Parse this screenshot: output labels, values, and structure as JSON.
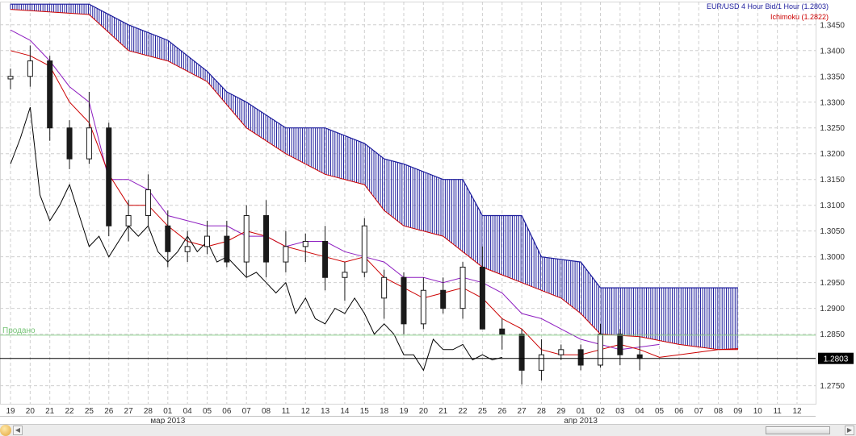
{
  "legend": {
    "main": "EUR/USD 4 Hour Bid/1 Hour (1.2803)",
    "indicator": "Ichimoku (1.2822)"
  },
  "colors": {
    "cloud": "#1c1c9c",
    "tenkan": "#cc0000",
    "kijun": "#8e1ec0",
    "chikou": "#000000",
    "candle_body": "#1a1a1a",
    "sold_line": "#8fd08f",
    "price_line": "#000000",
    "grid": "#cfcfcf"
  },
  "chart_data": {
    "type": "candlestick",
    "instrument": "EUR/USD",
    "timeframe": "4 Hour",
    "y_range": [
      1.2715,
      1.3495
    ],
    "y_ticks": [
      "1.3450",
      "1.3400",
      "1.3350",
      "1.3300",
      "1.3250",
      "1.3200",
      "1.3150",
      "1.3100",
      "1.3050",
      "1.3000",
      "1.2950",
      "1.2900",
      "1.2850",
      "1.2750"
    ],
    "y_tick_values": [
      1.345,
      1.34,
      1.335,
      1.33,
      1.325,
      1.32,
      1.315,
      1.31,
      1.305,
      1.3,
      1.295,
      1.29,
      1.285,
      1.275
    ],
    "x_labels": [
      "19",
      "20",
      "21",
      "22",
      "25",
      "26",
      "27",
      "28",
      "01",
      "04",
      "05",
      "06",
      "07",
      "08",
      "11",
      "12",
      "13",
      "14",
      "15",
      "18",
      "19",
      "20",
      "21",
      "22",
      "25",
      "26",
      "27",
      "28",
      "29",
      "01",
      "02",
      "03",
      "04",
      "05",
      "06",
      "07",
      "08",
      "09",
      "10",
      "11",
      "12"
    ],
    "month_labels": [
      {
        "text": "мар 2013",
        "at_day_index": 8
      },
      {
        "text": "апр 2013",
        "at_day_index": 29
      }
    ],
    "current_price": 1.2803,
    "current_price_label": "1.2803",
    "sold_level": 1.2848,
    "sold_label": "Продано",
    "daily_ohlc": [
      {
        "d": "19",
        "o": 1.3345,
        "h": 1.3365,
        "l": 1.3325,
        "c": 1.335
      },
      {
        "d": "20",
        "o": 1.335,
        "h": 1.341,
        "l": 1.333,
        "c": 1.338
      },
      {
        "d": "21",
        "o": 1.338,
        "h": 1.339,
        "l": 1.3225,
        "c": 1.325
      },
      {
        "d": "22",
        "o": 1.325,
        "h": 1.3265,
        "l": 1.317,
        "c": 1.319
      },
      {
        "d": "25",
        "o": 1.319,
        "h": 1.332,
        "l": 1.318,
        "c": 1.325
      },
      {
        "d": "26",
        "o": 1.325,
        "h": 1.326,
        "l": 1.304,
        "c": 1.306
      },
      {
        "d": "27",
        "o": 1.306,
        "h": 1.311,
        "l": 1.303,
        "c": 1.308
      },
      {
        "d": "28",
        "o": 1.308,
        "h": 1.316,
        "l": 1.306,
        "c": 1.313
      },
      {
        "d": "01",
        "o": 1.306,
        "h": 1.309,
        "l": 1.298,
        "c": 1.301
      },
      {
        "d": "04",
        "o": 1.301,
        "h": 1.305,
        "l": 1.299,
        "c": 1.302
      },
      {
        "d": "05",
        "o": 1.302,
        "h": 1.307,
        "l": 1.3005,
        "c": 1.304
      },
      {
        "d": "06",
        "o": 1.304,
        "h": 1.307,
        "l": 1.298,
        "c": 1.299
      },
      {
        "d": "07",
        "o": 1.299,
        "h": 1.31,
        "l": 1.296,
        "c": 1.308
      },
      {
        "d": "08",
        "o": 1.308,
        "h": 1.311,
        "l": 1.296,
        "c": 1.299
      },
      {
        "d": "11",
        "o": 1.299,
        "h": 1.305,
        "l": 1.297,
        "c": 1.302
      },
      {
        "d": "12",
        "o": 1.302,
        "h": 1.3045,
        "l": 1.299,
        "c": 1.303
      },
      {
        "d": "13",
        "o": 1.303,
        "h": 1.306,
        "l": 1.2935,
        "c": 1.296
      },
      {
        "d": "14",
        "o": 1.296,
        "h": 1.299,
        "l": 1.2915,
        "c": 1.297
      },
      {
        "d": "15",
        "o": 1.297,
        "h": 1.3075,
        "l": 1.296,
        "c": 1.306
      },
      {
        "d": "18",
        "o": 1.292,
        "h": 1.2975,
        "l": 1.288,
        "c": 1.296
      },
      {
        "d": "19",
        "o": 1.296,
        "h": 1.297,
        "l": 1.285,
        "c": 1.287
      },
      {
        "d": "20",
        "o": 1.287,
        "h": 1.296,
        "l": 1.286,
        "c": 1.2935
      },
      {
        "d": "21",
        "o": 1.2935,
        "h": 1.296,
        "l": 1.289,
        "c": 1.29
      },
      {
        "d": "22",
        "o": 1.29,
        "h": 1.299,
        "l": 1.288,
        "c": 1.298
      },
      {
        "d": "25",
        "o": 1.298,
        "h": 1.302,
        "l": 1.286,
        "c": 1.286
      },
      {
        "d": "26",
        "o": 1.286,
        "h": 1.288,
        "l": 1.282,
        "c": 1.285
      },
      {
        "d": "27",
        "o": 1.285,
        "h": 1.286,
        "l": 1.2752,
        "c": 1.278
      },
      {
        "d": "28",
        "o": 1.278,
        "h": 1.284,
        "l": 1.276,
        "c": 1.281
      },
      {
        "d": "29",
        "o": 1.281,
        "h": 1.283,
        "l": 1.28,
        "c": 1.282
      },
      {
        "d": "01",
        "o": 1.282,
        "h": 1.283,
        "l": 1.278,
        "c": 1.279
      },
      {
        "d": "02",
        "o": 1.279,
        "h": 1.287,
        "l": 1.2785,
        "c": 1.285
      },
      {
        "d": "03",
        "o": 1.285,
        "h": 1.286,
        "l": 1.279,
        "c": 1.281
      },
      {
        "d": "04",
        "o": 1.281,
        "h": 1.2845,
        "l": 1.278,
        "c": 1.2803
      }
    ],
    "span_a": [
      [
        0,
        1.348
      ],
      [
        4,
        1.347
      ],
      [
        6,
        1.34
      ],
      [
        8,
        1.338
      ],
      [
        10,
        1.334
      ],
      [
        12,
        1.325
      ],
      [
        14,
        1.32
      ],
      [
        16,
        1.316
      ],
      [
        18,
        1.314
      ],
      [
        19,
        1.309
      ],
      [
        20,
        1.306
      ],
      [
        22,
        1.304
      ],
      [
        24,
        1.298
      ],
      [
        26,
        1.295
      ],
      [
        28,
        1.292
      ],
      [
        29,
        1.289
      ],
      [
        30,
        1.285
      ],
      [
        32,
        1.2845
      ],
      [
        34,
        1.283
      ],
      [
        36,
        1.282
      ],
      [
        37,
        1.282
      ]
    ],
    "span_b": [
      [
        0,
        1.349
      ],
      [
        4,
        1.349
      ],
      [
        6,
        1.345
      ],
      [
        8,
        1.342
      ],
      [
        10,
        1.336
      ],
      [
        11,
        1.332
      ],
      [
        12,
        1.33
      ],
      [
        14,
        1.325
      ],
      [
        16,
        1.325
      ],
      [
        18,
        1.322
      ],
      [
        19,
        1.319
      ],
      [
        20,
        1.318
      ],
      [
        22,
        1.315
      ],
      [
        23,
        1.315
      ],
      [
        24,
        1.308
      ],
      [
        26,
        1.308
      ],
      [
        27,
        1.3
      ],
      [
        29,
        1.299
      ],
      [
        30,
        1.294
      ],
      [
        37,
        1.294
      ]
    ],
    "tenkan": [
      [
        0,
        1.34
      ],
      [
        1,
        1.339
      ],
      [
        2,
        1.337
      ],
      [
        3,
        1.33
      ],
      [
        4,
        1.326
      ],
      [
        5,
        1.316
      ],
      [
        6,
        1.31
      ],
      [
        7,
        1.31
      ],
      [
        8,
        1.306
      ],
      [
        9,
        1.303
      ],
      [
        10,
        1.302
      ],
      [
        11,
        1.303
      ],
      [
        12,
        1.305
      ],
      [
        13,
        1.304
      ],
      [
        14,
        1.302
      ],
      [
        15,
        1.301
      ],
      [
        16,
        1.3
      ],
      [
        17,
        1.299
      ],
      [
        18,
        1.3
      ],
      [
        19,
        1.296
      ],
      [
        20,
        1.294
      ],
      [
        21,
        1.292
      ],
      [
        22,
        1.293
      ],
      [
        23,
        1.294
      ],
      [
        24,
        1.292
      ],
      [
        25,
        1.288
      ],
      [
        26,
        1.286
      ],
      [
        27,
        1.282
      ],
      [
        28,
        1.281
      ],
      [
        29,
        1.281
      ],
      [
        30,
        1.282
      ],
      [
        31,
        1.283
      ],
      [
        32,
        1.282
      ],
      [
        33,
        1.2805
      ],
      [
        34,
        1.281
      ],
      [
        35,
        1.2815
      ],
      [
        36,
        1.282
      ],
      [
        37,
        1.2822
      ]
    ],
    "kijun": [
      [
        0,
        1.344
      ],
      [
        1,
        1.342
      ],
      [
        2,
        1.338
      ],
      [
        3,
        1.333
      ],
      [
        4,
        1.33
      ],
      [
        5,
        1.315
      ],
      [
        6,
        1.315
      ],
      [
        7,
        1.313
      ],
      [
        8,
        1.308
      ],
      [
        9,
        1.307
      ],
      [
        10,
        1.306
      ],
      [
        11,
        1.306
      ],
      [
        12,
        1.304
      ],
      [
        13,
        1.304
      ],
      [
        14,
        1.302
      ],
      [
        15,
        1.303
      ],
      [
        16,
        1.303
      ],
      [
        17,
        1.301
      ],
      [
        18,
        1.3
      ],
      [
        19,
        1.299
      ],
      [
        20,
        1.296
      ],
      [
        21,
        1.296
      ],
      [
        22,
        1.295
      ],
      [
        23,
        1.296
      ],
      [
        24,
        1.295
      ],
      [
        25,
        1.293
      ],
      [
        26,
        1.289
      ],
      [
        27,
        1.288
      ],
      [
        28,
        1.286
      ],
      [
        29,
        1.284
      ],
      [
        30,
        1.283
      ],
      [
        31,
        1.282
      ],
      [
        32,
        1.2825
      ],
      [
        33,
        1.283
      ]
    ],
    "chikou": [
      [
        0,
        1.318
      ],
      [
        0.5,
        1.323
      ],
      [
        1,
        1.329
      ],
      [
        1.5,
        1.312
      ],
      [
        2,
        1.307
      ],
      [
        2.5,
        1.31
      ],
      [
        3,
        1.314
      ],
      [
        3.5,
        1.308
      ],
      [
        4,
        1.302
      ],
      [
        4.5,
        1.304
      ],
      [
        5,
        1.3
      ],
      [
        5.5,
        1.303
      ],
      [
        6,
        1.306
      ],
      [
        6.5,
        1.304
      ],
      [
        7,
        1.306
      ],
      [
        7.5,
        1.301
      ],
      [
        8,
        1.299
      ],
      [
        8.5,
        1.301
      ],
      [
        9,
        1.304
      ],
      [
        9.5,
        1.301
      ],
      [
        10,
        1.303
      ],
      [
        10.5,
        1.299
      ],
      [
        11,
        1.3
      ],
      [
        11.5,
        1.298
      ],
      [
        12,
        1.296
      ],
      [
        12.5,
        1.297
      ],
      [
        13,
        1.295
      ],
      [
        13.5,
        1.293
      ],
      [
        14,
        1.295
      ],
      [
        14.5,
        1.289
      ],
      [
        15,
        1.292
      ],
      [
        15.5,
        1.288
      ],
      [
        16,
        1.287
      ],
      [
        16.5,
        1.29
      ],
      [
        17,
        1.289
      ],
      [
        17.5,
        1.292
      ],
      [
        18,
        1.289
      ],
      [
        18.5,
        1.285
      ],
      [
        19,
        1.287
      ],
      [
        19.5,
        1.285
      ],
      [
        20,
        1.281
      ],
      [
        20.5,
        1.281
      ],
      [
        21,
        1.278
      ],
      [
        21.5,
        1.284
      ],
      [
        22,
        1.282
      ],
      [
        22.5,
        1.282
      ],
      [
        23,
        1.283
      ],
      [
        23.5,
        1.28
      ],
      [
        24,
        1.281
      ],
      [
        24.5,
        1.28
      ],
      [
        25,
        1.2805
      ]
    ]
  },
  "scrollbar": {
    "left_arrow": "◀",
    "right_arrow": "▶"
  }
}
